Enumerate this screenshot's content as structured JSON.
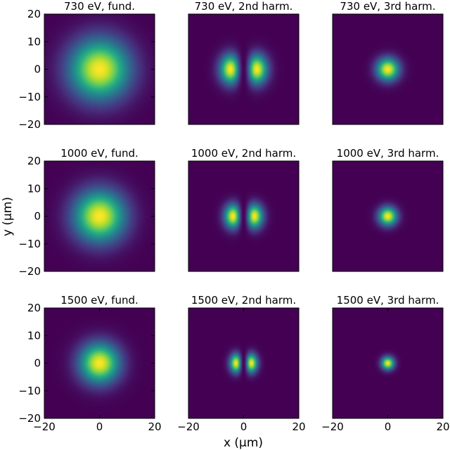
{
  "colormap": {
    "name": "viridis",
    "background": "#440154",
    "stops": [
      "#440154",
      "#472d7b",
      "#3b528b",
      "#2c728e",
      "#21918c",
      "#28ae80",
      "#5ec962",
      "#addc30",
      "#fde725"
    ]
  },
  "axes": {
    "xlabel": "x (μm)",
    "ylabel": "y (μm)",
    "xlim": [
      -20,
      20
    ],
    "ylim": [
      -20,
      20
    ],
    "xticks": [
      "−20",
      "0",
      "20"
    ],
    "yticks": [
      "20",
      "10",
      "0",
      "−10",
      "−20"
    ]
  },
  "chart_data": [
    {
      "type": "heatmap",
      "title": "730 eV, fund.",
      "mode": "fund",
      "sigma_x_um": 7.5,
      "sigma_y_um": 7.5,
      "peak_norm": 1.0
    },
    {
      "type": "heatmap",
      "title": "730 eV, 2nd harm.",
      "mode": "2nd",
      "sigma_x_um": 4.8,
      "sigma_y_um": 5.2,
      "lobe_offset_um": 4.8,
      "peak_norm": 1.0
    },
    {
      "type": "heatmap",
      "title": "730 eV, 3rd harm.",
      "mode": "3rd",
      "sigma_x_um": 2.8,
      "sigma_y_um": 2.8,
      "peak_norm": 1.0
    },
    {
      "type": "heatmap",
      "title": "1000 eV, fund.",
      "mode": "fund",
      "sigma_x_um": 6.4,
      "sigma_y_um": 6.4,
      "peak_norm": 1.0
    },
    {
      "type": "heatmap",
      "title": "1000 eV, 2nd harm.",
      "mode": "2nd",
      "sigma_x_um": 3.9,
      "sigma_y_um": 4.2,
      "lobe_offset_um": 3.9,
      "peak_norm": 1.0
    },
    {
      "type": "heatmap",
      "title": "1000 eV, 3rd harm.",
      "mode": "3rd",
      "sigma_x_um": 2.3,
      "sigma_y_um": 2.3,
      "peak_norm": 1.0
    },
    {
      "type": "heatmap",
      "title": "1500 eV, fund.",
      "mode": "fund",
      "sigma_x_um": 5.0,
      "sigma_y_um": 5.0,
      "peak_norm": 1.0
    },
    {
      "type": "heatmap",
      "title": "1500 eV, 2nd harm.",
      "mode": "2nd",
      "sigma_x_um": 2.8,
      "sigma_y_um": 3.3,
      "lobe_offset_um": 2.8,
      "peak_norm": 1.0
    },
    {
      "type": "heatmap",
      "title": "1500 eV, 3rd harm.",
      "mode": "3rd",
      "sigma_x_um": 1.6,
      "sigma_y_um": 1.6,
      "peak_norm": 1.0
    }
  ]
}
